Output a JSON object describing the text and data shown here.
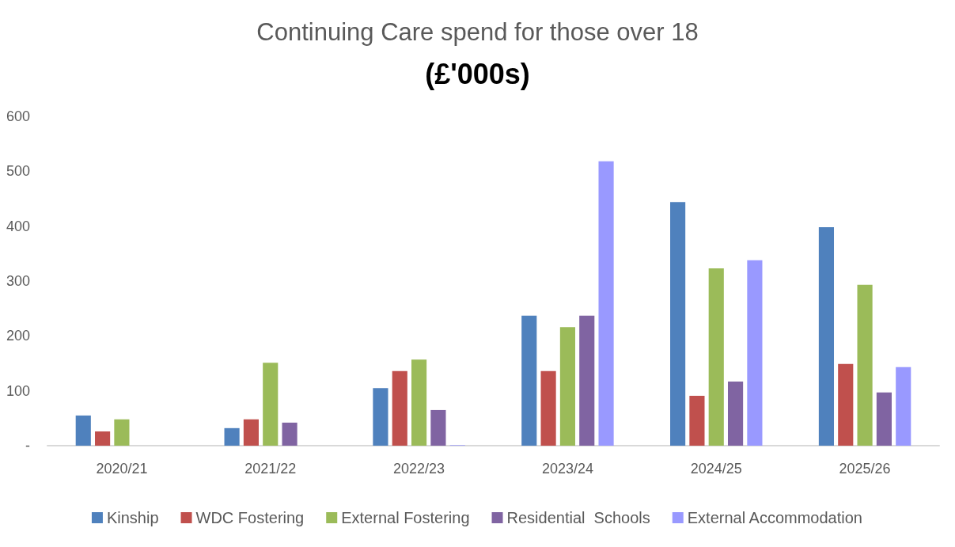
{
  "chart_data": {
    "type": "bar",
    "title": "Continuing Care spend for those over 18",
    "subtitle": "(£'000s)",
    "categories": [
      "2020/21",
      "2021/22",
      "2022/23",
      "2023/24",
      "2024/25",
      "2025/26"
    ],
    "series": [
      {
        "name": "Kinship",
        "color": "#4f81bd",
        "values": [
          55,
          32,
          105,
          237,
          444,
          398
        ]
      },
      {
        "name": "WDC Fostering",
        "color": "#c0504d",
        "values": [
          26,
          48,
          136,
          136,
          91,
          149
        ]
      },
      {
        "name": "External Fostering",
        "color": "#9bbb59",
        "values": [
          48,
          151,
          157,
          216,
          323,
          293
        ]
      },
      {
        "name": "Residential  Schools",
        "color": "#8064a2",
        "values": [
          null,
          42,
          65,
          237,
          117,
          97
        ]
      },
      {
        "name": "External Accommodation",
        "color": "#9999ff",
        "values": [
          null,
          null,
          1,
          518,
          338,
          143
        ]
      }
    ],
    "ylim": [
      0,
      600
    ],
    "yticks": [
      {
        "value": 0,
        "label": "-"
      },
      100,
      200,
      300,
      400,
      500,
      600
    ],
    "grid": false,
    "legend": "bottom"
  }
}
